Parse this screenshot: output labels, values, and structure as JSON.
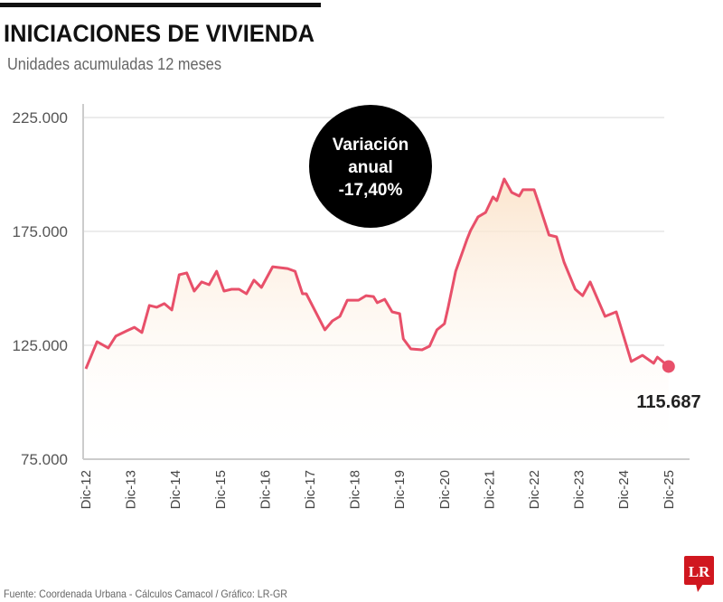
{
  "header": {
    "title": "INICIACIONES DE VIVIENDA",
    "subtitle": "Unidades acumuladas 12 meses"
  },
  "annotation": {
    "line1": "Variación",
    "line2": "anual",
    "line3": "-17,40%"
  },
  "footer": {
    "source": "Fuente: Coordenada Urbana - Cálculos Camacol  / Gráfico: LR-GR",
    "logo": "LR"
  },
  "colors": {
    "line": "#e8506a",
    "fill_top": "#fbe6cf",
    "bubble": "#000000",
    "logo": "#d0171f"
  },
  "chart_data": {
    "type": "area",
    "title": "INICIACIONES DE VIVIENDA",
    "subtitle": "Unidades acumuladas 12 meses",
    "xlabel": "",
    "ylabel": "",
    "ylim": [
      75000,
      225000
    ],
    "yticks": [
      75000,
      125000,
      175000,
      225000
    ],
    "ytick_labels": [
      "75.000",
      "125.000",
      "175.000",
      "225.000"
    ],
    "xtick_labels": [
      "Dic-12",
      "Dic-13",
      "Dic-14",
      "Dic-15",
      "Dic-16",
      "Dic-17",
      "Dic-18",
      "Dic-19",
      "Dic-20",
      "Dic-21",
      "Dic-22",
      "Dic-23",
      "Dic-24",
      "Dic-25"
    ],
    "grid": true,
    "last_value_label": "115.687",
    "x": [
      "2012-12",
      "2013-03",
      "2013-06",
      "2013-08",
      "2013-11",
      "2014-01",
      "2014-03",
      "2014-05",
      "2014-07",
      "2014-09",
      "2014-11",
      "2015-01",
      "2015-03",
      "2015-05",
      "2015-07",
      "2015-09",
      "2015-11",
      "2016-01",
      "2016-03",
      "2016-05",
      "2016-07",
      "2016-09",
      "2016-11",
      "2017-02",
      "2017-06",
      "2017-08",
      "2017-10",
      "2017-11",
      "2018-04",
      "2018-06",
      "2018-08",
      "2018-10",
      "2019-01",
      "2019-03",
      "2019-05",
      "2019-06",
      "2019-08",
      "2019-10",
      "2019-12",
      "2020-01",
      "2020-03",
      "2020-06",
      "2020-08",
      "2020-10",
      "2020-12",
      "2021-01",
      "2021-03",
      "2021-06",
      "2021-07",
      "2021-09",
      "2021-11",
      "2022-01",
      "2022-02",
      "2022-04",
      "2022-06",
      "2022-08",
      "2022-09",
      "2022-12",
      "2023-01",
      "2023-04",
      "2023-06",
      "2023-08",
      "2023-11",
      "2024-01",
      "2024-03",
      "2024-07",
      "2024-10",
      "2025-02",
      "2025-05",
      "2025-08",
      "2025-09",
      "2025-12"
    ],
    "values": [
      114700,
      126600,
      123800,
      129000,
      131400,
      132900,
      130600,
      142500,
      141700,
      143300,
      140500,
      156000,
      156800,
      148800,
      152800,
      151600,
      157500,
      148800,
      149600,
      149600,
      147600,
      153600,
      150400,
      159500,
      158700,
      157500,
      147600,
      147600,
      131800,
      135700,
      137700,
      144800,
      144800,
      146800,
      146400,
      143700,
      145200,
      139700,
      138900,
      127800,
      123400,
      123000,
      124600,
      131800,
      134500,
      141700,
      157500,
      171400,
      175400,
      181400,
      183300,
      190100,
      188500,
      198000,
      192100,
      190500,
      193300,
      193300,
      188500,
      173400,
      172600,
      161500,
      149600,
      146800,
      152800,
      137700,
      139700,
      117900,
      120600,
      117100,
      119800,
      115687
    ]
  }
}
